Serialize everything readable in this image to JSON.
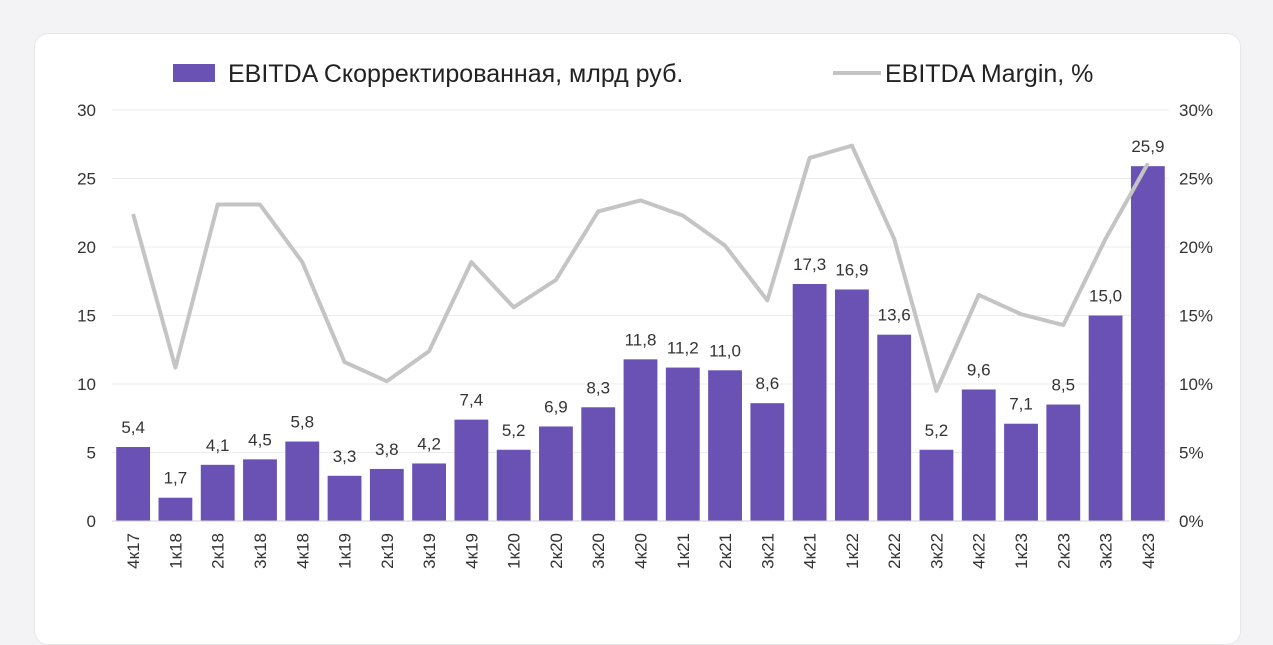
{
  "chart_data": {
    "type": "bar",
    "categories": [
      "4к17",
      "1к18",
      "2к18",
      "3к18",
      "4к18",
      "1к19",
      "2к19",
      "3к19",
      "4к19",
      "1к20",
      "2к20",
      "3к20",
      "4к20",
      "1к21",
      "2к21",
      "3к21",
      "4к21",
      "1к22",
      "2к22",
      "3к22",
      "4к22",
      "1к23",
      "2к23",
      "3к23",
      "4к23"
    ],
    "series": [
      {
        "name": "EBITDA Скорректированная, млрд руб.",
        "type": "bar",
        "axis": "left",
        "color": "#6a51b4",
        "values": [
          5.4,
          1.7,
          4.1,
          4.5,
          5.8,
          3.3,
          3.8,
          4.2,
          7.4,
          5.2,
          6.9,
          8.3,
          11.8,
          11.2,
          11.0,
          8.6,
          17.3,
          16.9,
          13.6,
          5.2,
          9.6,
          7.1,
          8.5,
          15.0,
          25.9
        ],
        "labels": [
          "5,4",
          "1,7",
          "4,1",
          "4,5",
          "5,8",
          "3,3",
          "3,8",
          "4,2",
          "7,4",
          "5,2",
          "6,9",
          "8,3",
          "11,8",
          "11,2",
          "11,0",
          "8,6",
          "17,3",
          "16,9",
          "13,6",
          "5,2",
          "9,6",
          "7,1",
          "8,5",
          "15,0",
          "25,9"
        ]
      },
      {
        "name": "EBITDA Margin, %",
        "type": "line",
        "axis": "right",
        "color": "#c4c4c4",
        "values": [
          22.4,
          11.2,
          23.1,
          23.1,
          18.9,
          11.6,
          10.2,
          12.4,
          18.9,
          15.6,
          17.6,
          22.6,
          23.4,
          22.3,
          20.1,
          16.1,
          26.5,
          27.4,
          20.6,
          9.5,
          16.5,
          15.1,
          14.3,
          20.6,
          26.1
        ]
      }
    ],
    "y_left": {
      "min": 0,
      "max": 30,
      "ticks": [
        "0",
        "5",
        "10",
        "15",
        "20",
        "25",
        "30"
      ]
    },
    "y_right": {
      "min": 0,
      "max": 30,
      "ticks": [
        "0%",
        "5%",
        "10%",
        "15%",
        "20%",
        "25%",
        "30%"
      ]
    },
    "legend_position": "top",
    "grid": true
  }
}
